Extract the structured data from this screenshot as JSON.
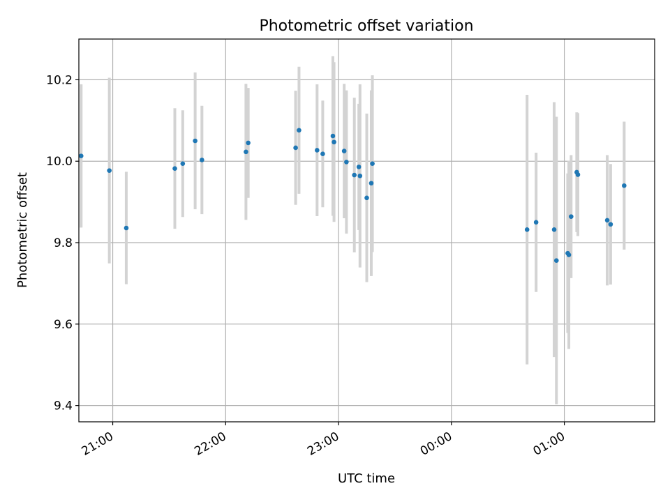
{
  "chart_data": {
    "type": "scatter",
    "title": "Photometric offset variation",
    "xlabel": "UTC time",
    "ylabel": "Photometric offset",
    "x_unit": "UTC time (hours, values past 24 are after midnight)",
    "xlim": [
      20.7,
      25.8
    ],
    "ylim": [
      9.36,
      10.3
    ],
    "x_ticks": [
      {
        "value": 21,
        "label": "21:00"
      },
      {
        "value": 22,
        "label": "22:00"
      },
      {
        "value": 23,
        "label": "23:00"
      },
      {
        "value": 24,
        "label": "00:00"
      },
      {
        "value": 25,
        "label": "01:00"
      }
    ],
    "y_ticks": [
      {
        "value": 9.4,
        "label": "9.4"
      },
      {
        "value": 9.6,
        "label": "9.6"
      },
      {
        "value": 9.8,
        "label": "9.8"
      },
      {
        "value": 10.0,
        "label": "10.0"
      },
      {
        "value": 10.2,
        "label": "10.2"
      }
    ],
    "grid": true,
    "point_color": "#1f77b4",
    "errorbar_color": "#d3d3d3",
    "series": [
      {
        "x": [
          20.72,
          20.97,
          21.12,
          21.55,
          21.62,
          21.73,
          21.79,
          22.18,
          22.2,
          22.62,
          22.65,
          22.81,
          22.86,
          22.95,
          22.96,
          23.05,
          23.07,
          23.14,
          23.18,
          23.19,
          23.25,
          23.29,
          23.3,
          24.67,
          24.75,
          24.91,
          24.93,
          25.03,
          25.04,
          25.06,
          25.11,
          25.12,
          25.38,
          25.41,
          25.53
        ],
        "y": [
          10.013,
          9.977,
          9.836,
          9.982,
          9.994,
          10.05,
          10.003,
          10.023,
          10.045,
          10.033,
          10.076,
          10.027,
          10.018,
          10.062,
          10.047,
          10.025,
          9.998,
          9.966,
          9.986,
          9.964,
          9.91,
          9.946,
          9.994,
          9.832,
          9.85,
          9.832,
          9.756,
          9.774,
          9.77,
          9.864,
          9.973,
          9.967,
          9.855,
          9.845,
          9.94
        ],
        "err": [
          0.176,
          0.228,
          0.138,
          0.148,
          0.131,
          0.168,
          0.133,
          0.167,
          0.135,
          0.14,
          0.156,
          0.162,
          0.131,
          0.196,
          0.196,
          0.165,
          0.176,
          0.19,
          0.155,
          0.225,
          0.207,
          0.228,
          0.217,
          0.331,
          0.171,
          0.313,
          0.353,
          0.196,
          0.231,
          0.151,
          0.147,
          0.151,
          0.16,
          0.148,
          0.157
        ]
      }
    ]
  }
}
